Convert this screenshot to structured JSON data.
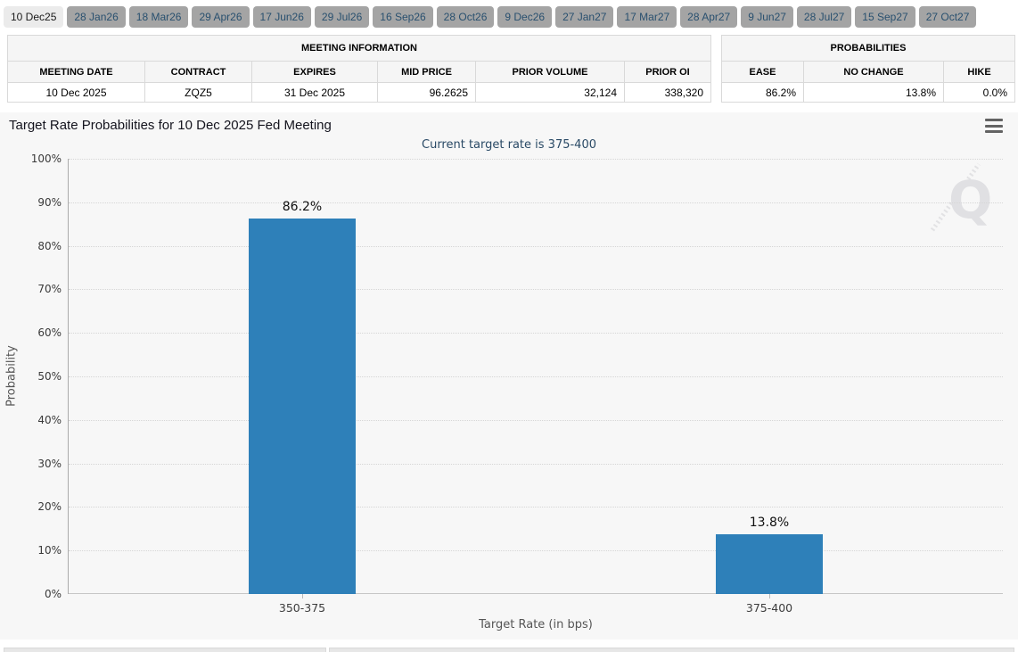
{
  "tabs": {
    "items": [
      {
        "label": "10 Dec25",
        "active": true
      },
      {
        "label": "28 Jan26",
        "active": false
      },
      {
        "label": "18 Mar26",
        "active": false
      },
      {
        "label": "29 Apr26",
        "active": false
      },
      {
        "label": "17 Jun26",
        "active": false
      },
      {
        "label": "29 Jul26",
        "active": false
      },
      {
        "label": "16 Sep26",
        "active": false
      },
      {
        "label": "28 Oct26",
        "active": false
      },
      {
        "label": "9 Dec26",
        "active": false
      },
      {
        "label": "27 Jan27",
        "active": false
      },
      {
        "label": "17 Mar27",
        "active": false
      },
      {
        "label": "28 Apr27",
        "active": false
      },
      {
        "label": "9 Jun27",
        "active": false
      },
      {
        "label": "28 Jul27",
        "active": false
      },
      {
        "label": "15 Sep27",
        "active": false
      },
      {
        "label": "27 Oct27",
        "active": false
      }
    ]
  },
  "meeting_info": {
    "title": "MEETING INFORMATION",
    "columns": [
      "MEETING DATE",
      "CONTRACT",
      "EXPIRES",
      "MID PRICE",
      "PRIOR VOLUME",
      "PRIOR OI"
    ],
    "row": [
      "10 Dec 2025",
      "ZQZ5",
      "31 Dec 2025",
      "96.2625",
      "32,124",
      "338,320"
    ]
  },
  "probabilities": {
    "title": "PROBABILITIES",
    "columns": [
      "EASE",
      "NO CHANGE",
      "HIKE"
    ],
    "row": [
      "86.2%",
      "13.8%",
      "0.0%"
    ]
  },
  "chart": {
    "menu_icon": "hamburger-icon",
    "watermark_letter": "Q"
  },
  "chart_data": {
    "type": "bar",
    "title": "Target Rate Probabilities for 10 Dec 2025 Fed Meeting",
    "subtitle": "Current target rate is 375-400",
    "categories": [
      "350-375",
      "375-400"
    ],
    "values": [
      86.2,
      13.8
    ],
    "value_labels": [
      "86.2%",
      "13.8%"
    ],
    "xlabel": "Target Rate (in bps)",
    "ylabel": "Probability",
    "ylim": [
      0,
      100
    ],
    "ytick_step": 10,
    "ytick_suffix": "%",
    "grid": "dotted horizontal",
    "legend": "none",
    "bar_color": "#2e80b9"
  },
  "colors": {
    "bar": "#2e80b9",
    "panel_bg": "#f7f7f7",
    "tab_inactive_bg": "#a4a4a4",
    "tab_active_bg": "#ebebeb",
    "tab_text": "#29506f",
    "subtitle_text": "#2a4a66",
    "table_header_bg": "#f5f5f5",
    "table_border": "#d9d9d9",
    "watermark": "#c9c9ce"
  }
}
